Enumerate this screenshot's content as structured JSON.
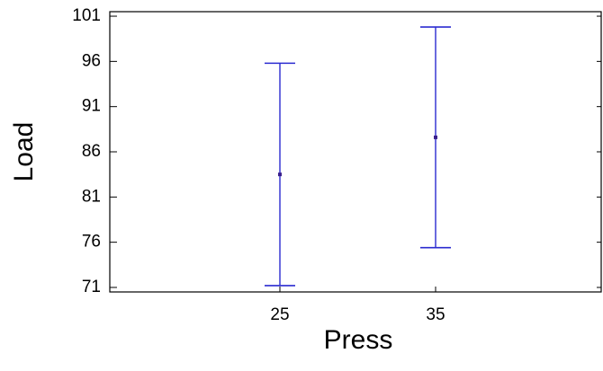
{
  "chart_data": {
    "type": "errorbar",
    "title": "",
    "xlabel": "Press",
    "ylabel": "Load",
    "categories": [
      "25",
      "35"
    ],
    "ylim": [
      70.5,
      101.5
    ],
    "yticks": [
      71,
      76,
      81,
      86,
      91,
      96,
      101
    ],
    "ytick_labels": [
      "71",
      "76",
      "81",
      "86",
      "91",
      "96",
      "101"
    ],
    "grid": false,
    "colors": {
      "series": "#2b2bd0",
      "axis": "#000000"
    },
    "series": [
      {
        "points": [
          {
            "x": "25",
            "mean": 83.5,
            "lower": 71.2,
            "upper": 95.8
          },
          {
            "x": "35",
            "mean": 87.6,
            "lower": 75.4,
            "upper": 99.8
          }
        ]
      }
    ]
  }
}
